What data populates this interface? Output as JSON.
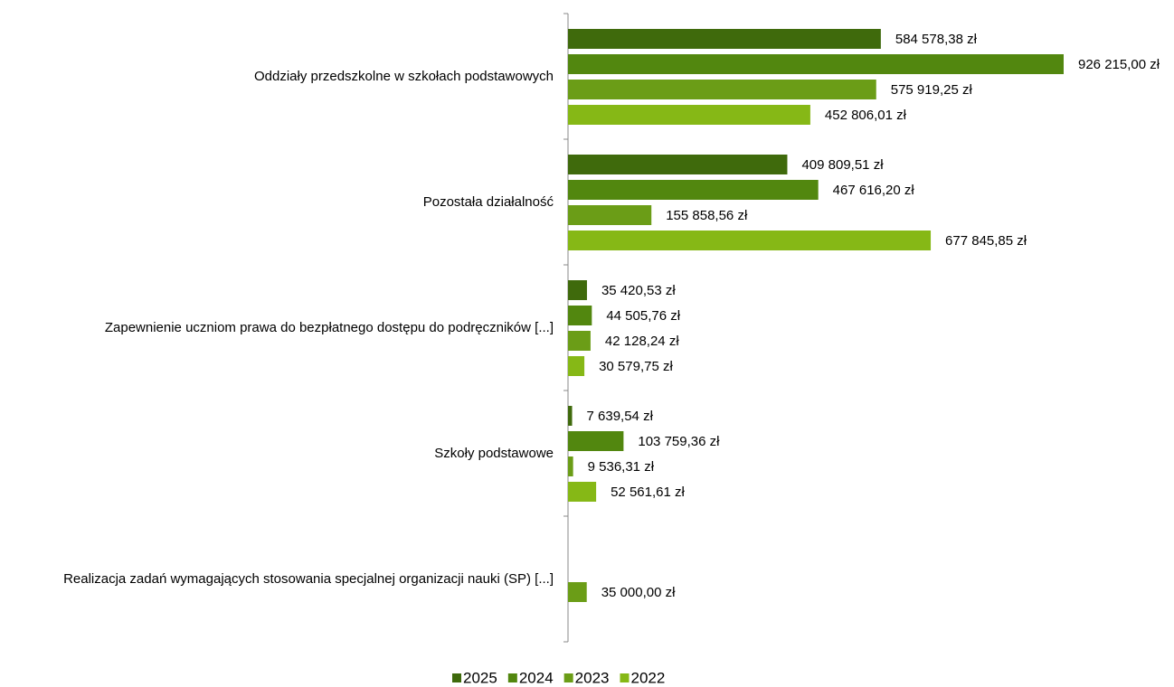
{
  "chart_data": {
    "type": "bar",
    "orientation": "horizontal",
    "categories": [
      "Oddziały przedszkolne w szkołach podstawowych",
      "Pozostała działalność",
      "Zapewnienie uczniom prawa do bezpłatnego dostępu do podręczników [...]",
      "Szkoły podstawowe",
      "Realizacja zadań wymagających stosowania specjalnej organizacji nauki (SP) [...]"
    ],
    "series": [
      {
        "name": "2025",
        "color": "#3f6a0c",
        "values": [
          584578.38,
          409809.51,
          35420.53,
          7639.54,
          null
        ],
        "value_labels": [
          "584 578,38 zł",
          "409 809,51 zł",
          "35 420,53 zł",
          "7 639,54 zł",
          null
        ]
      },
      {
        "name": "2024",
        "color": "#52870f",
        "values": [
          926215.0,
          467616.2,
          44505.76,
          103759.36,
          null
        ],
        "value_labels": [
          "926 215,00 zł",
          "467 616,20 zł",
          "44 505,76 zł",
          "103 759,36 zł",
          null
        ]
      },
      {
        "name": "2023",
        "color": "#6b9d17",
        "values": [
          575919.25,
          155858.56,
          42128.24,
          9536.31,
          35000.0
        ],
        "value_labels": [
          "575 919,25 zł",
          "155 858,56 zł",
          "42 128,24 zł",
          "9 536,31 zł",
          "35 000,00 zł"
        ]
      },
      {
        "name": "2022",
        "color": "#86b816",
        "values": [
          452806.01,
          677845.85,
          30579.75,
          52561.61,
          null
        ],
        "value_labels": [
          "452 806,01 zł",
          "677 845,85 zł",
          "30 579,75 zł",
          "52 561,61 zł",
          null
        ]
      }
    ],
    "xlim": [
      0,
      926215
    ],
    "legend": "bottom"
  }
}
